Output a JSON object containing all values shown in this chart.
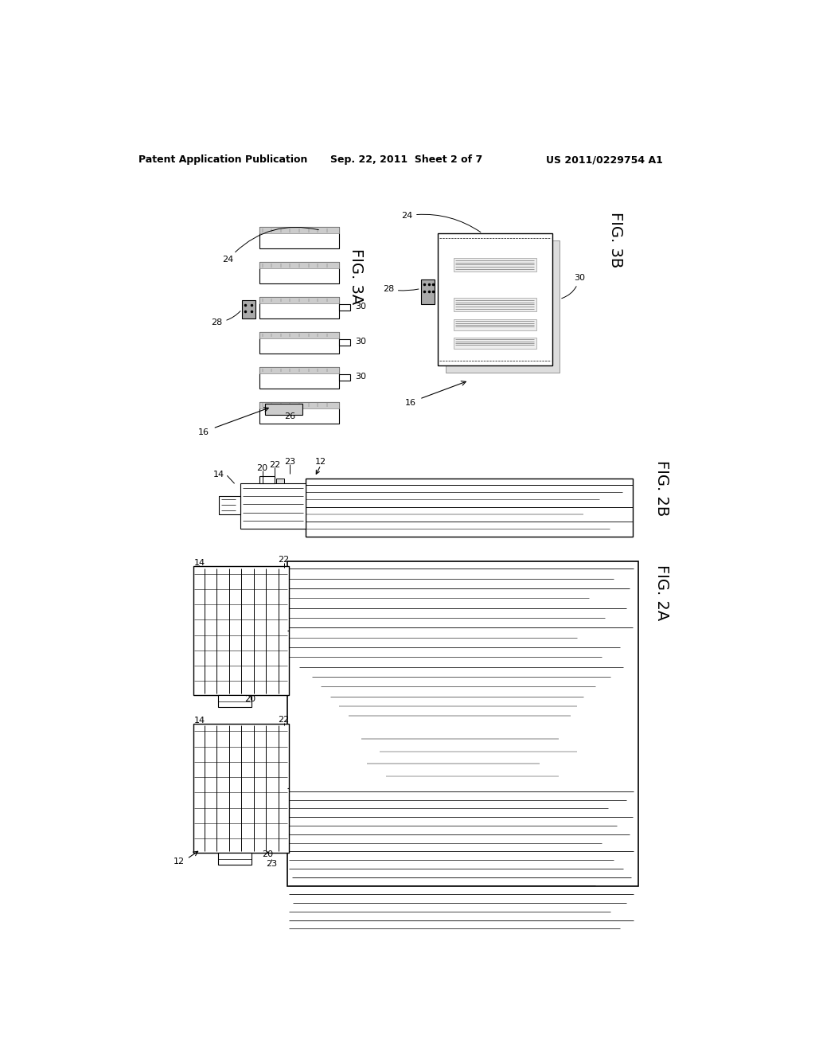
{
  "bg_color": "#ffffff",
  "header_left": "Patent Application Publication",
  "header_center": "Sep. 22, 2011  Sheet 2 of 7",
  "header_right": "US 2011/0229754 A1",
  "fig3a_label": "FIG. 3A",
  "fig3b_label": "FIG. 3B",
  "fig2b_label": "FIG. 2B",
  "fig2a_label": "FIG. 2A"
}
